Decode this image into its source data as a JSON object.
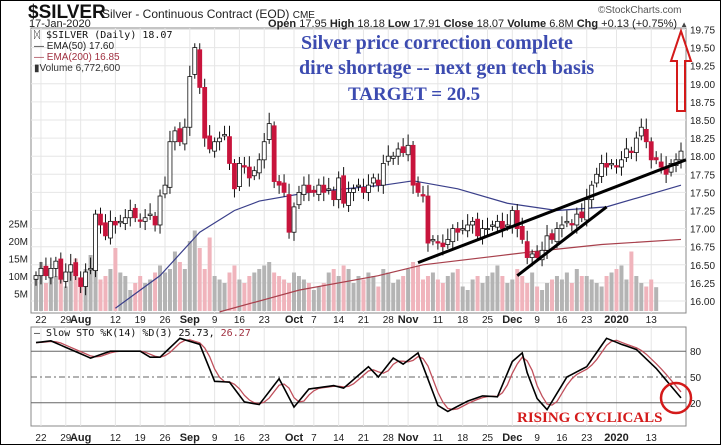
{
  "header": {
    "symbol": "$SILVER",
    "description": "Silver - Continuous Contract (EOD)",
    "exchange": "CME",
    "date": "17-Jan-2020",
    "watermark": "©StockCharts.com",
    "open_label": "Open",
    "open": "17.95",
    "high_label": "High",
    "high": "18.18",
    "low_label": "Low",
    "low": "17.91",
    "close_label": "Close",
    "close": "18.07",
    "volume_label": "Volume",
    "volume": "6.8M",
    "chg_label": "Chg",
    "chg": "+0.13 (+0.75%)",
    "chg_arrow": "▲"
  },
  "legend": {
    "main": "$SILVER (Daily) 18.07",
    "ema50": "EMA(50) 17.60",
    "ema200": "EMA(200) 16.85",
    "volume": "Volume 6,772,600"
  },
  "annotations": {
    "line1": "Silver price correction complete",
    "line2": "dire shortage -- next gen tech basis",
    "line3": "TARGET = 20.5",
    "rising": "RISING CYCLICALS"
  },
  "stoch_legend": {
    "label": "Slow STO %K(14) %D(3) 25.73,",
    "d_value": "26.27"
  },
  "colors": {
    "up_fill": "#ffffff",
    "down_fill": "#c8143c",
    "vol_up": "#b4b4b4",
    "vol_down": "#f0b4bc",
    "ema50": "#3a3f8a",
    "ema200": "#a8404c",
    "annotation_blue": "#3c4bb0",
    "annotation_red": "#d41a1a"
  },
  "chart_data": [
    {
      "type": "candlestick",
      "title": "$SILVER Silver - Continuous Contract (EOD) CME",
      "x_unit": "trading day index (0 = 19-Jul-2019, 130 = 17-Jan-2020)",
      "ylim": [
        16.0,
        19.75
      ],
      "y_ticks": [
        "16.00",
        "16.25",
        "16.50",
        "16.75",
        "17.00",
        "17.25",
        "17.50",
        "17.75",
        "18.00",
        "18.25",
        "18.50",
        "18.75",
        "19.00",
        "19.25",
        "19.50",
        "19.75"
      ],
      "x_ticks": [
        {
          "i": 1,
          "label": "22"
        },
        {
          "i": 6,
          "label": "29"
        },
        {
          "i": 9,
          "label": "Aug",
          "bold": true
        },
        {
          "i": 16,
          "label": "12"
        },
        {
          "i": 21,
          "label": "19"
        },
        {
          "i": 26,
          "label": "26"
        },
        {
          "i": 31,
          "label": "Sep",
          "bold": true
        },
        {
          "i": 36,
          "label": "9"
        },
        {
          "i": 41,
          "label": "16"
        },
        {
          "i": 46,
          "label": "23"
        },
        {
          "i": 52,
          "label": "Oct",
          "bold": true
        },
        {
          "i": 56,
          "label": "7"
        },
        {
          "i": 61,
          "label": "14"
        },
        {
          "i": 66,
          "label": "21"
        },
        {
          "i": 71,
          "label": "28"
        },
        {
          "i": 75,
          "label": "Nov",
          "bold": true
        },
        {
          "i": 81,
          "label": "11"
        },
        {
          "i": 86,
          "label": "18"
        },
        {
          "i": 91,
          "label": "25"
        },
        {
          "i": 96,
          "label": "Dec",
          "bold": true
        },
        {
          "i": 101,
          "label": "9"
        },
        {
          "i": 106,
          "label": "16"
        },
        {
          "i": 111,
          "label": "23"
        },
        {
          "i": 117,
          "label": "2020",
          "bold": true
        },
        {
          "i": 124,
          "label": "13"
        }
      ],
      "close": [
        16.35,
        16.45,
        16.35,
        16.45,
        16.55,
        16.3,
        16.4,
        16.5,
        16.35,
        16.2,
        16.4,
        16.45,
        17.2,
        17.05,
        16.9,
        17.1,
        17.05,
        17.1,
        17.15,
        17.25,
        17.15,
        17.1,
        17.15,
        17.2,
        17.05,
        17.45,
        17.6,
        18.2,
        18.35,
        18.2,
        18.4,
        19.1,
        19.5,
        18.95,
        18.25,
        18.1,
        18.2,
        18.25,
        18.3,
        17.9,
        17.55,
        17.9,
        17.85,
        17.7,
        17.8,
        17.95,
        18.2,
        18.45,
        17.65,
        17.6,
        17.5,
        16.95,
        17.3,
        17.5,
        17.6,
        17.5,
        17.5,
        17.6,
        17.5,
        17.55,
        17.4,
        17.7,
        17.35,
        17.5,
        17.55,
        17.6,
        17.5,
        17.6,
        17.7,
        17.6,
        17.9,
        18.0,
        18.0,
        18.1,
        18.05,
        18.15,
        17.6,
        17.5,
        17.45,
        16.8,
        16.85,
        16.8,
        16.75,
        16.85,
        17.0,
        16.95,
        17.0,
        17.05,
        17.1,
        16.9,
        17.0,
        17.0,
        17.05,
        17.1,
        17.0,
        17.05,
        17.25,
        17.0,
        16.85,
        16.6,
        16.65,
        16.6,
        16.7,
        16.9,
        16.85,
        17.0,
        17.05,
        17.1,
        17.05,
        17.2,
        17.15,
        17.4,
        17.6,
        17.75,
        17.9,
        17.85,
        17.9,
        17.85,
        17.95,
        18.1,
        18.05,
        18.25,
        18.4,
        18.2,
        17.95,
        17.95,
        17.85,
        17.75,
        17.9,
        17.95,
        18.07
      ],
      "volume_millions": [
        9,
        14,
        8,
        12,
        10,
        11,
        7,
        13,
        15,
        9,
        12,
        16,
        14,
        9,
        10,
        12,
        18,
        11,
        10,
        6,
        8,
        10,
        8,
        9,
        11,
        13,
        11,
        12,
        17,
        14,
        12,
        20,
        23,
        18,
        12,
        21,
        10,
        9,
        8,
        11,
        13,
        9,
        8,
        10,
        11,
        12,
        13,
        14,
        11,
        10,
        9,
        8,
        11,
        10,
        9,
        8,
        6,
        7,
        8,
        11,
        12,
        10,
        13,
        12,
        8,
        10,
        9,
        11,
        10,
        7,
        12,
        11,
        8,
        9,
        10,
        12,
        14,
        13,
        9,
        10,
        11,
        9,
        8,
        10,
        11,
        12,
        7,
        6,
        9,
        10,
        8,
        10,
        11,
        13,
        10,
        8,
        9,
        12,
        10,
        8,
        11,
        7,
        6,
        8,
        9,
        10,
        9,
        11,
        8,
        12,
        10,
        10,
        9,
        8,
        7,
        10,
        11,
        12,
        13,
        9,
        17,
        10,
        8,
        7,
        9,
        6.8
      ],
      "volume_ticks": [
        "5M",
        "10M",
        "15M",
        "20M",
        "25M"
      ],
      "ema50": [
        [
          16,
          15.9
        ],
        [
          25,
          16.35
        ],
        [
          33,
          16.95
        ],
        [
          40,
          17.25
        ],
        [
          45,
          17.38
        ],
        [
          55,
          17.5
        ],
        [
          70,
          17.6
        ],
        [
          76,
          17.66
        ],
        [
          85,
          17.55
        ],
        [
          95,
          17.35
        ],
        [
          105,
          17.25
        ],
        [
          115,
          17.3
        ],
        [
          125,
          17.5
        ],
        [
          130,
          17.6
        ]
      ],
      "ema200": [
        [
          37,
          15.85
        ],
        [
          53,
          16.15
        ],
        [
          69,
          16.35
        ],
        [
          78,
          16.5
        ],
        [
          100,
          16.68
        ],
        [
          114,
          16.78
        ],
        [
          130,
          16.85
        ]
      ],
      "trendlines": [
        [
          [
            77,
            16.53
          ],
          [
            131,
            17.95
          ]
        ],
        [
          [
            97,
            16.35
          ],
          [
            115,
            17.3
          ]
        ]
      ],
      "target_arrow": true
    },
    {
      "type": "line",
      "title": "Slow STO %K(14) %D(3)",
      "ylim": [
        0,
        100
      ],
      "y_ticks": [
        "20",
        "50",
        "80"
      ],
      "k": [
        [
          0,
          90
        ],
        [
          3,
          92
        ],
        [
          11,
          72
        ],
        [
          15,
          80
        ],
        [
          21,
          80
        ],
        [
          23,
          73
        ],
        [
          25,
          73
        ],
        [
          29,
          95
        ],
        [
          33,
          88
        ],
        [
          36,
          45
        ],
        [
          39,
          44
        ],
        [
          42,
          21
        ],
        [
          45,
          18
        ],
        [
          49,
          48
        ],
        [
          52,
          15
        ],
        [
          55,
          36
        ],
        [
          60,
          40
        ],
        [
          62,
          37
        ],
        [
          67,
          62
        ],
        [
          69,
          50
        ],
        [
          72,
          72
        ],
        [
          74,
          65
        ],
        [
          77,
          78
        ],
        [
          81,
          17
        ],
        [
          83,
          10
        ],
        [
          87,
          22
        ],
        [
          90,
          28
        ],
        [
          93,
          27
        ],
        [
          96,
          68
        ],
        [
          98,
          78
        ],
        [
          99,
          55
        ],
        [
          101,
          25
        ],
        [
          103,
          12
        ],
        [
          107,
          50
        ],
        [
          111,
          62
        ],
        [
          115,
          95
        ],
        [
          118,
          88
        ],
        [
          121,
          82
        ],
        [
          125,
          60
        ],
        [
          130,
          25.73
        ]
      ],
      "k_last": 25.73,
      "d_last": 26.27
    }
  ]
}
